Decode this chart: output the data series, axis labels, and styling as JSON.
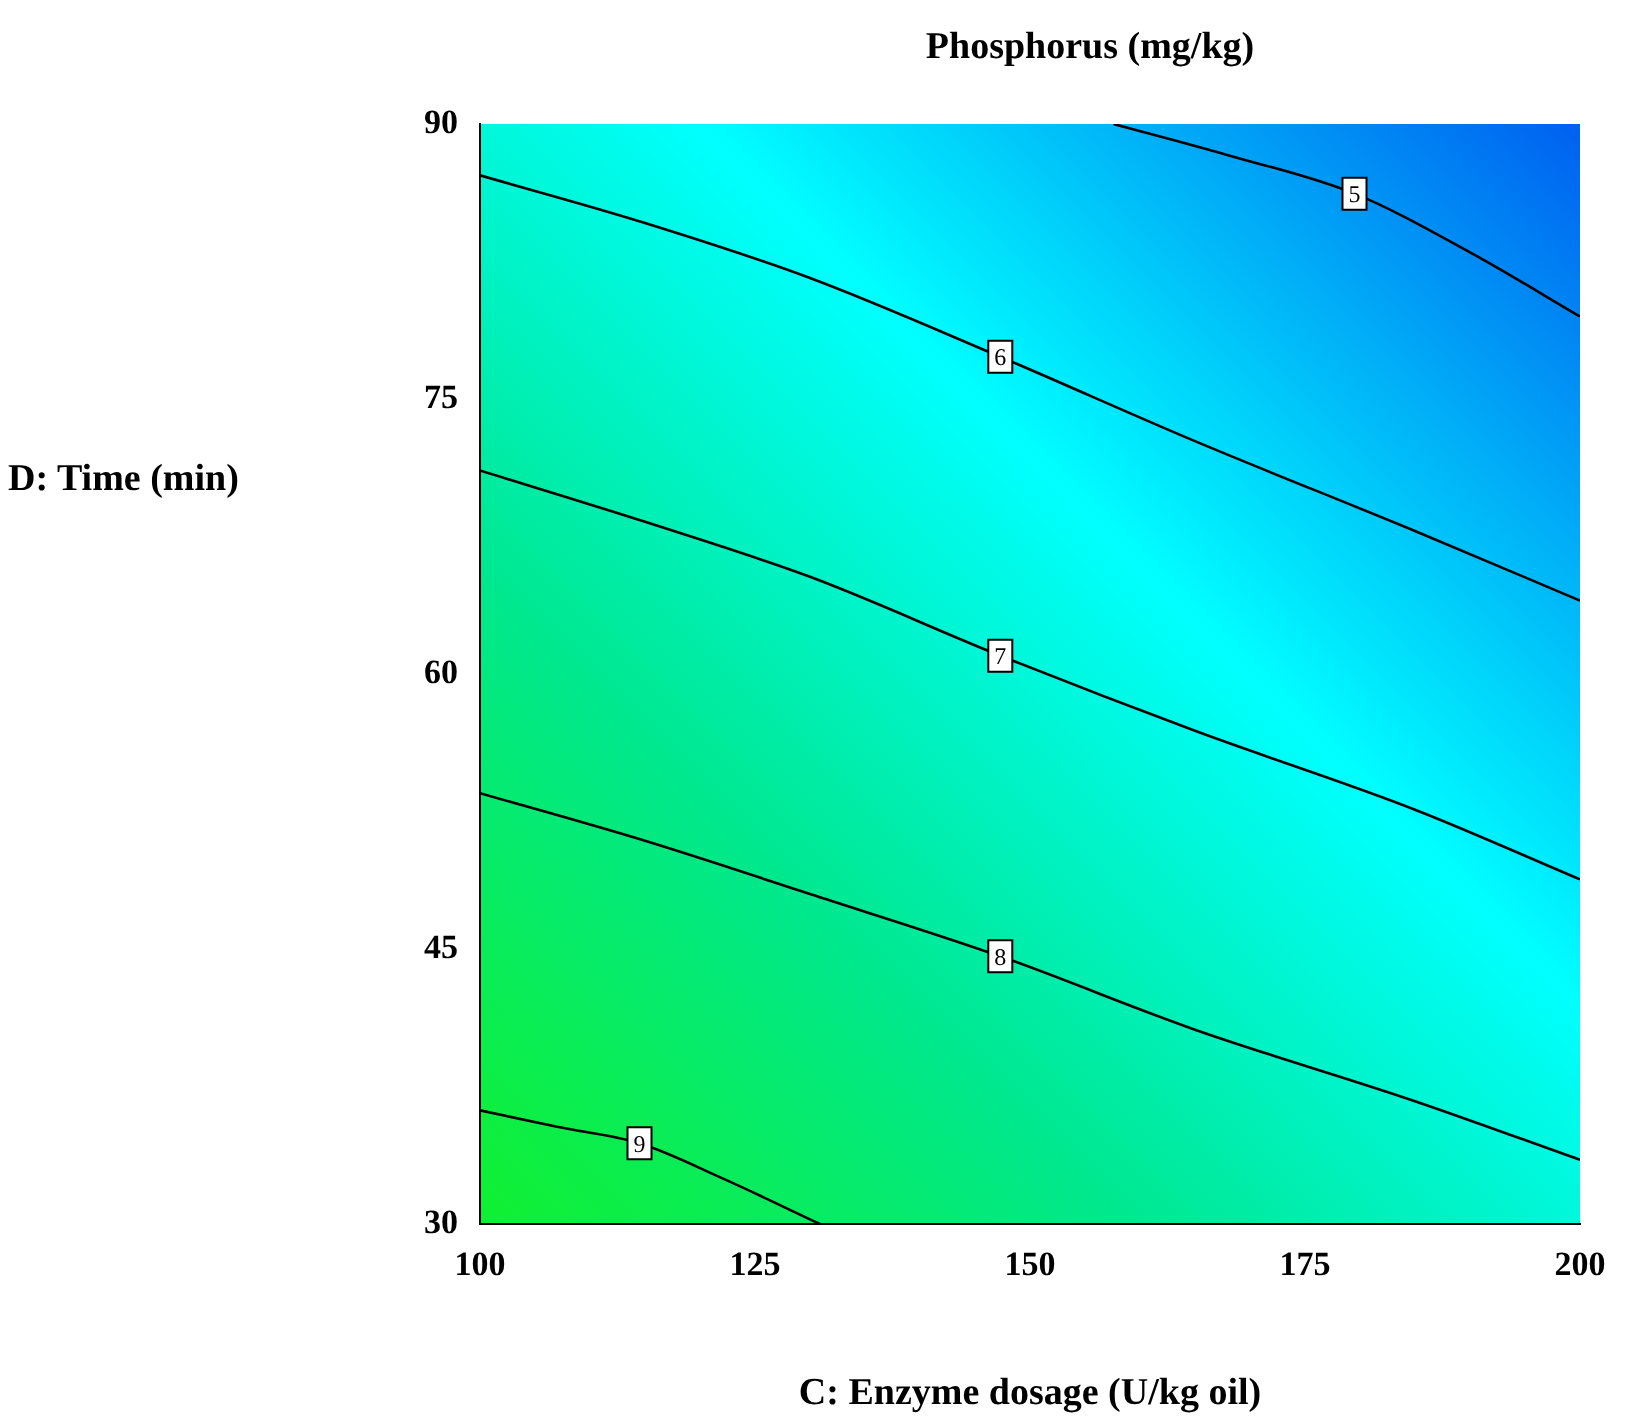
{
  "chart_data": {
    "type": "line",
    "title": "Phosphorus (mg/kg)",
    "xlabel": "C: Enzyme dosage (U/kg oil)",
    "ylabel": "D: Time (min)",
    "xlim": [
      100,
      200
    ],
    "xticks": [
      100,
      125,
      150,
      175,
      200
    ],
    "ylim": [
      30,
      90
    ],
    "yticks": [
      30,
      45,
      60,
      75,
      90
    ],
    "grid": false,
    "legend": false,
    "marker": "none",
    "line_style": "solid",
    "series": [
      {
        "color": "#000000",
        "x": [
          157.6,
          168,
          179.5,
          190,
          200
        ],
        "values": [
          90,
          88.3,
          86.2,
          83,
          79.5
        ]
      },
      {
        "color": "#000000",
        "x": [
          100,
          115,
          130,
          147.3,
          165,
          185,
          200
        ],
        "values": [
          87.2,
          84.6,
          81.6,
          77.3,
          72.7,
          67.8,
          64
        ]
      },
      {
        "color": "#000000",
        "x": [
          100,
          115,
          130,
          147.3,
          165,
          185,
          200
        ],
        "values": [
          71.1,
          68.3,
          65.3,
          61,
          56.9,
          52.6,
          48.8
        ]
      },
      {
        "color": "#000000",
        "x": [
          100,
          115,
          130,
          147.3,
          165,
          185,
          200
        ],
        "values": [
          53.5,
          50.9,
          48,
          44.6,
          40.6,
          36.7,
          33.5
        ]
      },
      {
        "color": "#000000",
        "x": [
          100,
          107,
          114.5,
          122,
          130.9
        ],
        "values": [
          36.2,
          35.3,
          34.4,
          32.5,
          30
        ]
      }
    ],
    "annotations": [
      {
        "text": "5",
        "x": 179.5,
        "y": 86.2
      },
      {
        "text": "6",
        "x": 147.3,
        "y": 77.3
      },
      {
        "text": "7",
        "x": 147.3,
        "y": 61
      },
      {
        "text": "8",
        "x": 147.3,
        "y": 44.6
      },
      {
        "text": "9",
        "x": 114.5,
        "y": 34.4
      }
    ]
  }
}
